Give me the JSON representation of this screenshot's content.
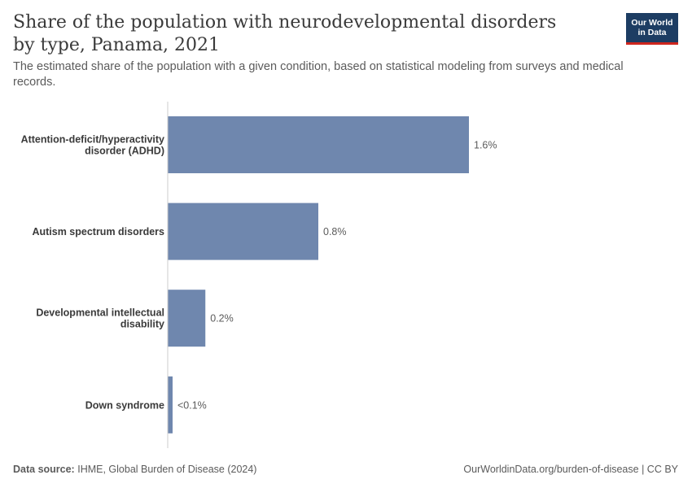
{
  "header": {
    "title": "Share of the population with neurodevelopmental disorders by type, Panama, 2021",
    "subtitle": "The estimated share of the population with a given condition, based on statistical modeling from surveys and medical records.",
    "logo_line1": "Our World",
    "logo_line2": "in Data"
  },
  "footer": {
    "source_label": "Data source:",
    "source_text": "IHME, Global Burden of Disease (2024)",
    "url": "OurWorldinData.org/burden-of-disease",
    "license": "CC BY"
  },
  "colors": {
    "bar": "#6f87ae",
    "axis": "#cccccc",
    "label": "#3a3a3a",
    "value_label": "#5b5b5b"
  },
  "chart_data": {
    "type": "bar",
    "orientation": "horizontal",
    "categories": [
      [
        "Attention-deficit/hyperactivity",
        "disorder (ADHD)"
      ],
      [
        "Autism spectrum disorders"
      ],
      [
        "Developmental intellectual",
        "disability"
      ],
      [
        "Down syndrome"
      ]
    ],
    "values": [
      1.6,
      0.8,
      0.2,
      0.02
    ],
    "value_labels": [
      "1.6%",
      "0.8%",
      "0.2%",
      "<0.1%"
    ],
    "unit": "%",
    "xlim": [
      0,
      1.6
    ],
    "grid": false
  }
}
